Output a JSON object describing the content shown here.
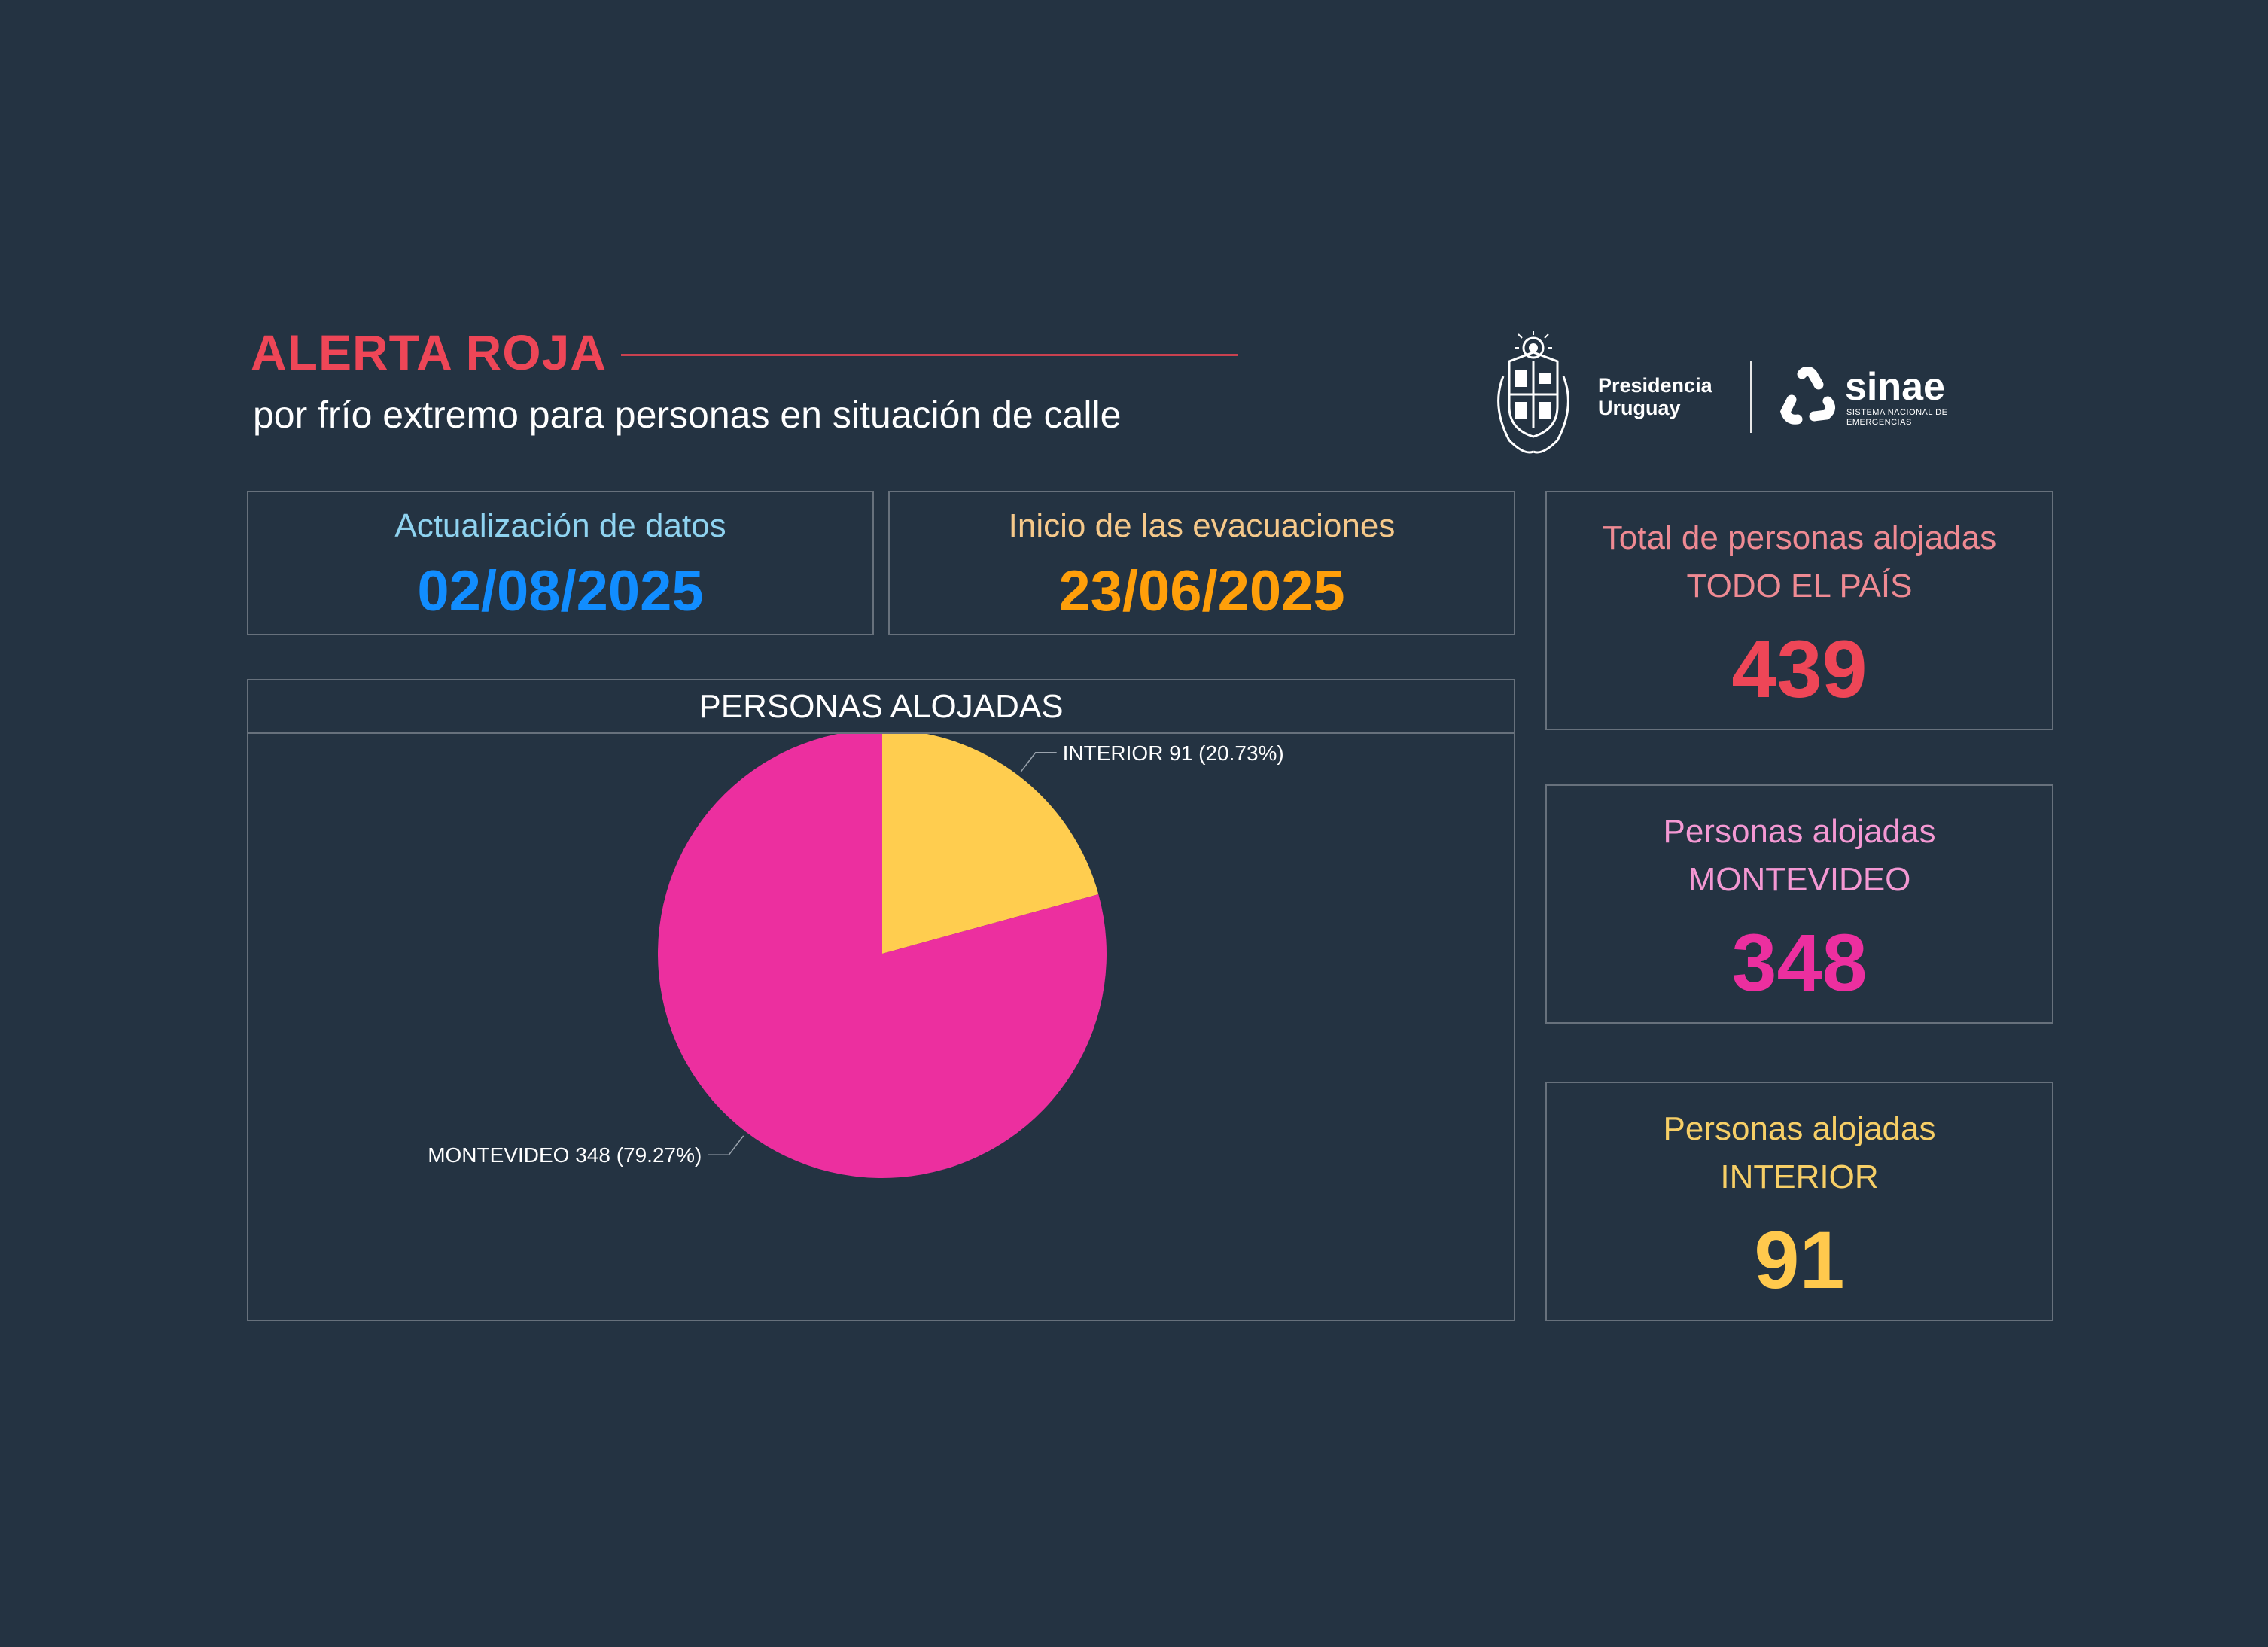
{
  "header": {
    "title": "ALERTA ROJA",
    "subtitle": "por frío extremo para personas en situación de calle"
  },
  "logos": {
    "presidencia": "Presidencia Uruguay",
    "sinae": "sinae",
    "sinae_sub": "SISTEMA NACIONAL DE EMERGENCIAS"
  },
  "cards": {
    "update": {
      "label": "Actualización de datos",
      "value": "02/08/2025",
      "label_color": "#8fd3f0",
      "value_color": "#118dff"
    },
    "start": {
      "label": "Inicio de las evacuaciones",
      "value": "23/06/2025",
      "label_color": "#f6c98a",
      "value_color": "#ff9f0a"
    }
  },
  "kpis": {
    "total": {
      "label": "Total de personas alojadas",
      "sublabel": "TODO EL PAÍS",
      "value": "439",
      "label_color": "#ef8a93",
      "value_color": "#ee4657"
    },
    "montevideo": {
      "label": "Personas alojadas",
      "sublabel": "MONTEVIDEO",
      "value": "348",
      "label_color": "#f498d3",
      "value_color": "#ec2f9f"
    },
    "interior": {
      "label": "Personas alojadas",
      "sublabel": "INTERIOR",
      "value": "91",
      "label_color": "#f7cf66",
      "value_color": "#ffc94d"
    }
  },
  "chart_data": {
    "type": "pie",
    "title": "PERSONAS ALOJADAS",
    "slices": [
      {
        "label": "INTERIOR",
        "value": 91,
        "percent": 20.73,
        "display": "INTERIOR 91 (20.73%)",
        "color": "#ffcd4f"
      },
      {
        "label": "MONTEVIDEO",
        "value": 348,
        "percent": 79.27,
        "display": "MONTEVIDEO 348 (79.27%)",
        "color": "#ec2f9f"
      }
    ],
    "legend": "none"
  }
}
